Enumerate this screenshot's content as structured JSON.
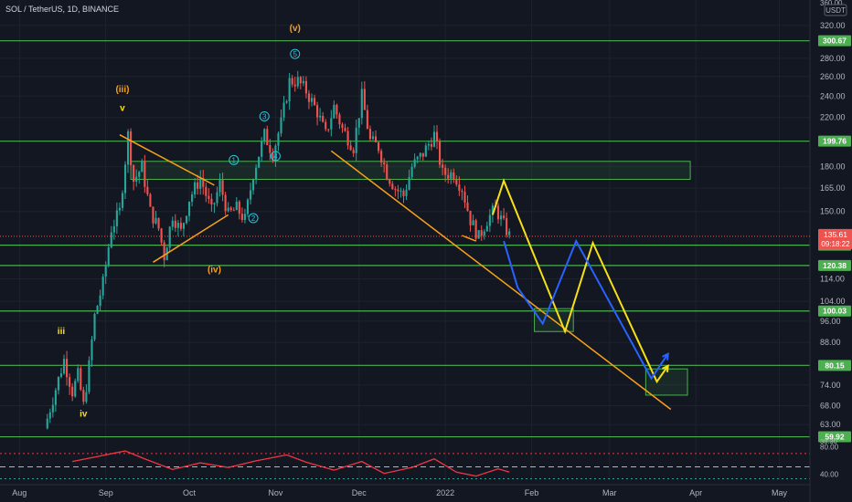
{
  "header": {
    "symbol_text": "SOL / TetherUS, 1D, BINANCE",
    "currency_button": "USDT"
  },
  "chart_data": {
    "type": "candlestick",
    "symbol": "SOL / TetherUS",
    "timeframe": "1D",
    "exchange": "BINANCE",
    "y_scale": "log",
    "ylim": [
      57,
      355
    ],
    "xlim": [
      "2021-07-25",
      "2022-05-12"
    ],
    "x_ticks": [
      {
        "label": "Aug",
        "date": "2021-08-01"
      },
      {
        "label": "Sep",
        "date": "2021-09-01"
      },
      {
        "label": "Oct",
        "date": "2021-10-01"
      },
      {
        "label": "Nov",
        "date": "2021-11-01"
      },
      {
        "label": "Dec",
        "date": "2021-12-01"
      },
      {
        "label": "2022",
        "date": "2022-01-01"
      },
      {
        "label": "Feb",
        "date": "2022-02-01"
      },
      {
        "label": "Mar",
        "date": "2022-03-01"
      },
      {
        "label": "Apr",
        "date": "2022-04-01"
      },
      {
        "label": "May",
        "date": "2022-05-01"
      }
    ],
    "y_ticks": [
      "320.00",
      "280.00",
      "260.00",
      "240.00",
      "220.00",
      "180.00",
      "165.00",
      "150.00",
      "114.00",
      "104.00",
      "96.00",
      "88.00",
      "74.00",
      "68.00",
      "63.00"
    ],
    "top_cut_label": "360.00",
    "current_price": {
      "value": "135.61",
      "countdown": "09:18:22"
    },
    "levels": [
      {
        "value": 300.67,
        "label": "300.67"
      },
      {
        "value": 199.76,
        "label": "199.76"
      },
      {
        "value": 130.77,
        "label": "130.77"
      },
      {
        "value": 120.38,
        "label": "120.38"
      },
      {
        "value": 100.03,
        "label": "100.03"
      },
      {
        "value": 80.15,
        "label": "80.15"
      },
      {
        "value": 59.92,
        "label": "59.92"
      }
    ],
    "price_path": [
      [
        "2021-08-10",
        62
      ],
      [
        "2021-08-13",
        70
      ],
      [
        "2021-08-17",
        82
      ],
      [
        "2021-08-20",
        72
      ],
      [
        "2021-08-22",
        77
      ],
      [
        "2021-08-24",
        68
      ],
      [
        "2021-08-26",
        80
      ],
      [
        "2021-08-28",
        98
      ],
      [
        "2021-08-31",
        112
      ],
      [
        "2021-09-03",
        140
      ],
      [
        "2021-09-06",
        150
      ],
      [
        "2021-09-09",
        205
      ],
      [
        "2021-09-11",
        170
      ],
      [
        "2021-09-14",
        180
      ],
      [
        "2021-09-17",
        150
      ],
      [
        "2021-09-20",
        140
      ],
      [
        "2021-09-22",
        125
      ],
      [
        "2021-09-25",
        148
      ],
      [
        "2021-09-28",
        138
      ],
      [
        "2021-10-01",
        158
      ],
      [
        "2021-10-05",
        172
      ],
      [
        "2021-10-09",
        150
      ],
      [
        "2021-10-12",
        168
      ],
      [
        "2021-10-15",
        148
      ],
      [
        "2021-10-18",
        152
      ],
      [
        "2021-10-21",
        145
      ],
      [
        "2021-10-24",
        175
      ],
      [
        "2021-10-28",
        205
      ],
      [
        "2021-10-31",
        190
      ],
      [
        "2021-11-03",
        215
      ],
      [
        "2021-11-06",
        255
      ],
      [
        "2021-11-09",
        255
      ],
      [
        "2021-11-12",
        245
      ],
      [
        "2021-11-16",
        225
      ],
      [
        "2021-11-19",
        205
      ],
      [
        "2021-11-22",
        230
      ],
      [
        "2021-11-25",
        210
      ],
      [
        "2021-11-29",
        195
      ],
      [
        "2021-12-02",
        240
      ],
      [
        "2021-12-05",
        200
      ],
      [
        "2021-12-08",
        195
      ],
      [
        "2021-12-11",
        175
      ],
      [
        "2021-12-14",
        165
      ],
      [
        "2021-12-17",
        160
      ],
      [
        "2021-12-20",
        180
      ],
      [
        "2021-12-24",
        190
      ],
      [
        "2021-12-28",
        205
      ],
      [
        "2021-12-31",
        175
      ],
      [
        "2022-01-04",
        175
      ],
      [
        "2022-01-07",
        165
      ],
      [
        "2022-01-10",
        145
      ],
      [
        "2022-01-13",
        135
      ],
      [
        "2022-01-16",
        145
      ],
      [
        "2022-01-19",
        152
      ],
      [
        "2022-01-22",
        142
      ],
      [
        "2022-01-24",
        136
      ]
    ],
    "support_boxes": [
      {
        "name": "resistance-zone",
        "from": "2021-09-10",
        "to": "2022-03-30",
        "low": 171,
        "high": 184
      },
      {
        "name": "support-zone-mid",
        "from": "2022-02-02",
        "to": "2022-02-16",
        "low": 92,
        "high": 101
      },
      {
        "name": "target-zone",
        "from": "2022-03-14",
        "to": "2022-03-29",
        "low": 71,
        "high": 79
      }
    ],
    "trendlines": [
      {
        "name": "upper-wedge-line",
        "color": "#f7a21b",
        "points": [
          [
            "2021-09-06",
            205
          ],
          [
            "2021-10-10",
            167
          ]
        ]
      },
      {
        "name": "lower-wedge-line",
        "color": "#f7a21b",
        "points": [
          [
            "2021-09-18",
            122
          ],
          [
            "2021-10-15",
            148
          ]
        ]
      },
      {
        "name": "main-down-trendline",
        "color": "#f7a21b",
        "points": [
          [
            "2021-11-21",
            192
          ],
          [
            "2022-03-23",
            67
          ]
        ]
      },
      {
        "name": "short-down-line",
        "color": "#f7a21b",
        "points": [
          [
            "2022-01-07",
            136
          ],
          [
            "2022-01-12",
            133
          ]
        ]
      }
    ],
    "projection_paths": [
      {
        "name": "yellow-projection",
        "color": "#f7e018",
        "points": [
          [
            "2022-01-18",
            148
          ],
          [
            "2022-01-22",
            170
          ],
          [
            "2022-02-13",
            92
          ],
          [
            "2022-02-23",
            132
          ],
          [
            "2022-03-18",
            75
          ],
          [
            "2022-03-22",
            80
          ]
        ]
      },
      {
        "name": "blue-projection",
        "color": "#2962ff",
        "points": [
          [
            "2022-01-22",
            133
          ],
          [
            "2022-01-27",
            110
          ],
          [
            "2022-02-05",
            95
          ],
          [
            "2022-02-17",
            133
          ],
          [
            "2022-03-16",
            76
          ],
          [
            "2022-03-22",
            84
          ]
        ]
      }
    ],
    "wave_labels": [
      {
        "text": "(iii)",
        "date": "2021-09-07",
        "price": 244,
        "color": "#f7a21b"
      },
      {
        "text": "v",
        "date": "2021-09-07",
        "price": 226,
        "color": "#f7e018"
      },
      {
        "text": "(iv)",
        "date": "2021-10-10",
        "price": 117,
        "color": "#f7a21b"
      },
      {
        "text": "(v)",
        "date": "2021-11-08",
        "price": 313,
        "color": "#f7a21b"
      },
      {
        "text": "iii",
        "date": "2021-08-16",
        "price": 91,
        "color": "#f7e018"
      },
      {
        "text": "iv",
        "date": "2021-08-24",
        "price": 65,
        "color": "#f7e018"
      }
    ],
    "circle_labels": [
      {
        "text": "1",
        "date": "2021-10-17",
        "price": 185,
        "color": "#26c6da"
      },
      {
        "text": "2",
        "date": "2021-10-24",
        "price": 146,
        "color": "#26c6da"
      },
      {
        "text": "3",
        "date": "2021-10-28",
        "price": 221,
        "color": "#26c6da"
      },
      {
        "text": "4",
        "date": "2021-11-01",
        "price": 188,
        "color": "#26c6da"
      },
      {
        "text": "5",
        "date": "2021-11-08",
        "price": 285,
        "color": "#26c6da"
      }
    ],
    "indicator": {
      "name": "RSI",
      "ticks": [
        "80.00",
        "40.00"
      ],
      "cut_label": "38.30",
      "line_color": "#f23645",
      "values": [
        [
          "2021-08-20",
          58
        ],
        [
          "2021-09-01",
          68
        ],
        [
          "2021-09-08",
          74
        ],
        [
          "2021-09-15",
          62
        ],
        [
          "2021-09-25",
          46
        ],
        [
          "2021-10-05",
          56
        ],
        [
          "2021-10-15",
          49
        ],
        [
          "2021-10-25",
          59
        ],
        [
          "2021-11-05",
          68
        ],
        [
          "2021-11-12",
          57
        ],
        [
          "2021-11-22",
          45
        ],
        [
          "2021-12-02",
          58
        ],
        [
          "2021-12-10",
          40
        ],
        [
          "2021-12-20",
          49
        ],
        [
          "2021-12-28",
          62
        ],
        [
          "2022-01-05",
          42
        ],
        [
          "2022-01-12",
          36
        ],
        [
          "2022-01-20",
          47
        ],
        [
          "2022-01-24",
          42
        ]
      ]
    }
  }
}
